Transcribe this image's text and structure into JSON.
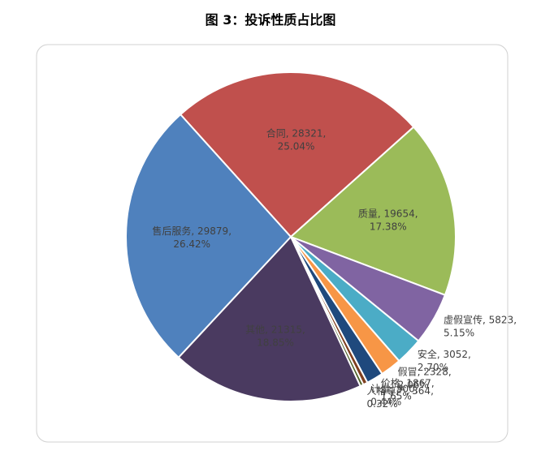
{
  "chart_data": {
    "type": "pie",
    "title": "图 3：投诉性质占比图",
    "categories": [
      "合同",
      "质量",
      "虚假宣传",
      "安全",
      "假冒",
      "价格",
      "计量",
      "人格尊严",
      "其他",
      "售后服务"
    ],
    "values": [
      28321,
      19654,
      5823,
      3052,
      2328,
      1867,
      500,
      364,
      21315,
      29879
    ],
    "value_labels": [
      [
        "合同, 28321,",
        "25.04%"
      ],
      [
        "质量, 19654,",
        "17.38%"
      ],
      [
        "虚假宣传, 5823,",
        "5.15%"
      ],
      [
        "安全, 3052,",
        "2.70%"
      ],
      [
        "假冒, 2328,",
        "2.06%"
      ],
      [
        "价格, 1867,",
        "1.65%"
      ],
      [
        "计量, 500,",
        "0.44%"
      ],
      [
        "人格尊严, 364,",
        "0.32%"
      ],
      [
        "其他, 21315,",
        "18.85%"
      ],
      [
        "售后服务, 29879,",
        "26.42%"
      ]
    ],
    "colors": [
      "#c0504d",
      "#9bbb59",
      "#8064a2",
      "#4bacc6",
      "#f79646",
      "#1f497d",
      "#7f3f1f",
      "#4f6228",
      "#4a3a60",
      "#4f81bd"
    ]
  }
}
